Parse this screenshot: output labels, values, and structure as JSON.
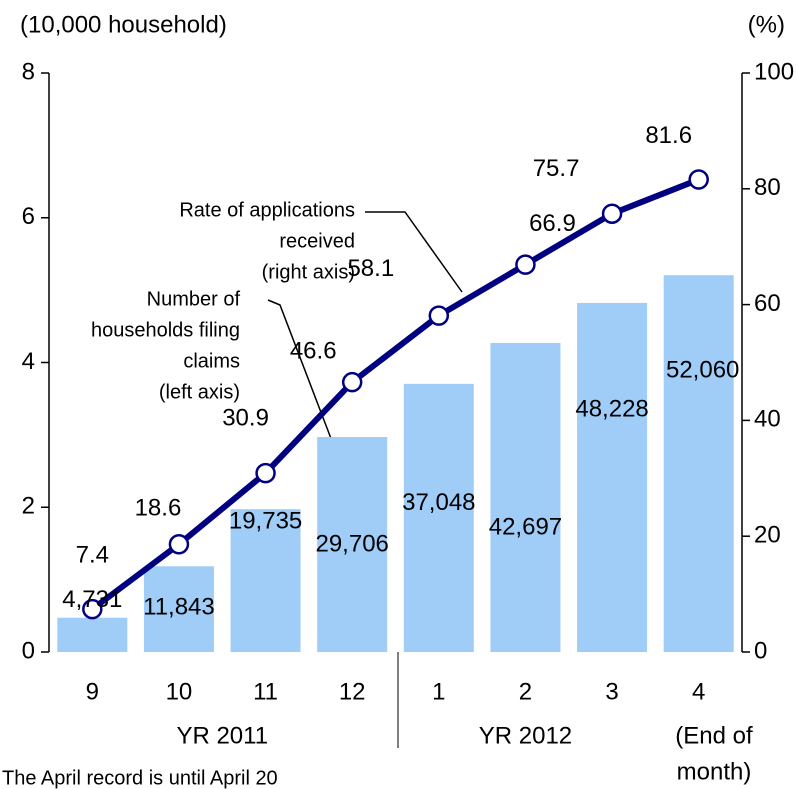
{
  "chart_data": {
    "type": "bar_line",
    "y_label": "(10,000 household)",
    "y2_label": "(%)",
    "categories": [
      "9",
      "10",
      "11",
      "12",
      "1",
      "2",
      "3",
      "4"
    ],
    "groups": [
      {
        "label": "YR 2011"
      },
      {
        "label": "YR 2012"
      }
    ],
    "last_note": [
      "(End of",
      "month)"
    ],
    "series": [
      {
        "name": "Number of households filing claims (left axis)",
        "color": "#9fcdf8",
        "kind": "bar",
        "axis": "y",
        "values": [
          0.4731,
          1.1843,
          1.9735,
          2.9706,
          3.7048,
          4.2697,
          4.8228,
          5.206
        ],
        "value_labels": [
          "4,731",
          "11,843",
          "19,735",
          "29,706",
          "37,048",
          "42,697",
          "48,228",
          "52,060"
        ]
      },
      {
        "name": "Rate of applications received (right axis)",
        "color": "#000080",
        "kind": "line",
        "axis": "y2",
        "values": [
          7.4,
          18.6,
          30.9,
          46.6,
          58.1,
          66.9,
          75.7,
          81.6
        ]
      }
    ],
    "annotations": [
      {
        "lines": [
          "Rate of applications",
          "received",
          "(right axis)"
        ]
      },
      {
        "lines": [
          "Number of",
          "households filing",
          "claims",
          "(left axis)"
        ]
      }
    ],
    "ylim": [
      0,
      8
    ],
    "yticks": [
      0,
      2,
      4,
      6,
      8
    ],
    "y2lim": [
      0,
      100
    ],
    "y2ticks": [
      0,
      20,
      40,
      60,
      80,
      100
    ],
    "footnote": "The April record is until April 20"
  }
}
